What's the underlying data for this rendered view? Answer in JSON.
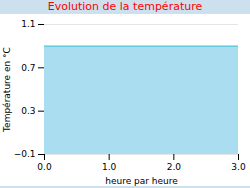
{
  "chart_data": {
    "type": "area",
    "title": "Evolution de la température",
    "xlabel": "heure par heure",
    "ylabel": "Température en °C",
    "x": [
      0,
      3
    ],
    "values": [
      0.9,
      0.9
    ],
    "colors": [
      "#aaddf0",
      "#66ccdd"
    ],
    "xlim": [
      0,
      3
    ],
    "xticks": [
      0,
      1,
      2,
      3
    ],
    "ylim": [
      -0.1,
      1.1
    ],
    "yticks": [
      -0.1,
      0.3,
      0.7,
      1.1
    ],
    "grid": true
  }
}
